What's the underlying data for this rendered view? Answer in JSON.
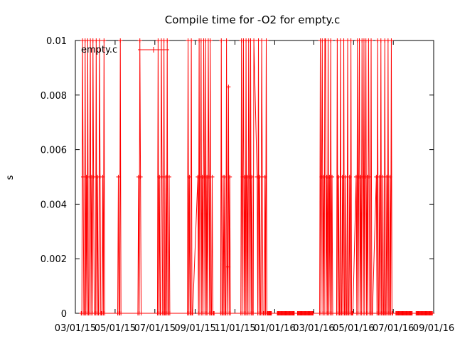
{
  "chart_data": {
    "type": "line",
    "title": "Compile time for -O2 for empty.c",
    "xlabel": "",
    "ylabel": "s",
    "x_scale": "time",
    "xlim": [
      "2015-03-01",
      "2016-09-01"
    ],
    "ylim": [
      0,
      0.01
    ],
    "x_ticks": [
      "03/01/15",
      "05/01/15",
      "07/01/15",
      "09/01/15",
      "11/01/15",
      "01/01/16",
      "03/01/16",
      "05/01/16",
      "07/01/16",
      "09/01/16"
    ],
    "y_ticks": [
      "0",
      "0.002",
      "0.004",
      "0.006",
      "0.008",
      "0.01"
    ],
    "y_tick_values": [
      0,
      0.002,
      0.004,
      0.006,
      0.008,
      0.01
    ],
    "grid": false,
    "legend_position": "top-left",
    "series": [
      {
        "name": "empty.c",
        "color": "#ff0000",
        "style": "linespoints",
        "x": [
          "2015-03-10",
          "2015-03-11",
          "2015-03-12",
          "2015-03-13",
          "2015-03-14",
          "2015-03-15",
          "2015-03-16",
          "2015-03-17",
          "2015-03-18",
          "2015-03-19",
          "2015-03-20",
          "2015-03-21",
          "2015-03-22",
          "2015-03-23",
          "2015-03-24",
          "2015-03-25",
          "2015-03-26",
          "2015-03-27",
          "2015-03-28",
          "2015-03-29",
          "2015-03-30",
          "2015-04-01",
          "2015-04-02",
          "2015-04-03",
          "2015-04-04",
          "2015-04-05",
          "2015-04-06",
          "2015-04-07",
          "2015-04-08",
          "2015-04-09",
          "2015-04-10",
          "2015-04-11",
          "2015-04-12",
          "2015-04-13",
          "2015-04-14",
          "2015-04-15",
          "2015-05-05",
          "2015-05-06",
          "2015-05-07",
          "2015-05-08",
          "2015-05-09",
          "2015-05-10",
          "2015-06-05",
          "2015-06-06",
          "2015-06-07",
          "2015-06-08",
          "2015-06-09",
          "2015-06-10",
          "2015-07-05",
          "2015-07-06",
          "2015-07-07",
          "2015-07-08",
          "2015-07-09",
          "2015-07-10",
          "2015-07-11",
          "2015-07-12",
          "2015-07-13",
          "2015-07-14",
          "2015-07-15",
          "2015-07-16",
          "2015-07-17",
          "2015-07-18",
          "2015-07-19",
          "2015-07-20",
          "2015-07-21",
          "2015-07-22",
          "2015-07-23",
          "2015-07-24",
          "2015-08-20",
          "2015-08-21",
          "2015-08-22",
          "2015-08-23",
          "2015-08-24",
          "2015-08-25",
          "2015-08-26",
          "2015-08-27",
          "2015-08-28",
          "2015-09-05",
          "2015-09-06",
          "2015-09-07",
          "2015-09-08",
          "2015-09-09",
          "2015-09-10",
          "2015-09-11",
          "2015-09-12",
          "2015-09-13",
          "2015-09-14",
          "2015-09-15",
          "2015-09-16",
          "2015-09-17",
          "2015-09-18",
          "2015-09-19",
          "2015-09-20",
          "2015-09-21",
          "2015-09-22",
          "2015-09-23",
          "2015-09-24",
          "2015-09-25",
          "2015-09-26",
          "2015-09-27",
          "2015-09-28",
          "2015-09-29",
          "2015-09-30",
          "2015-10-10",
          "2015-10-11",
          "2015-10-12",
          "2015-10-13",
          "2015-10-14",
          "2015-10-15",
          "2015-10-16",
          "2015-10-17",
          "2015-10-18",
          "2015-10-19",
          "2015-10-20",
          "2015-10-21",
          "2015-10-22",
          "2015-10-23",
          "2015-10-24",
          "2015-10-25",
          "2015-11-10",
          "2015-11-11",
          "2015-11-12",
          "2015-11-13",
          "2015-11-14",
          "2015-11-15",
          "2015-11-16",
          "2015-11-17",
          "2015-11-18",
          "2015-11-19",
          "2015-11-20",
          "2015-11-21",
          "2015-11-22",
          "2015-11-23",
          "2015-11-24",
          "2015-11-25",
          "2015-11-26",
          "2015-11-27",
          "2015-11-28",
          "2015-11-29",
          "2015-11-30",
          "2015-12-05",
          "2015-12-06",
          "2015-12-07",
          "2015-12-08",
          "2015-12-09",
          "2015-12-10",
          "2015-12-11",
          "2015-12-12",
          "2015-12-13",
          "2015-12-14",
          "2015-12-15",
          "2015-12-16",
          "2015-12-17",
          "2015-12-18",
          "2015-12-19",
          "2015-12-20",
          "2015-12-21",
          "2015-12-22",
          "2015-12-23",
          "2015-12-24",
          "2015-12-25",
          "2015-12-26",
          "2015-12-27",
          "2016-01-05",
          "2016-01-06",
          "2016-01-07",
          "2016-01-08",
          "2016-01-09",
          "2016-01-10",
          "2016-01-11",
          "2016-01-12",
          "2016-01-13",
          "2016-01-14",
          "2016-01-15",
          "2016-01-16",
          "2016-01-17",
          "2016-01-18",
          "2016-01-19",
          "2016-01-20",
          "2016-01-21",
          "2016-01-22",
          "2016-01-23",
          "2016-01-24",
          "2016-01-25",
          "2016-01-26",
          "2016-01-27",
          "2016-01-28",
          "2016-01-29",
          "2016-01-30",
          "2016-01-31",
          "2016-02-05",
          "2016-02-06",
          "2016-02-07",
          "2016-02-08",
          "2016-02-09",
          "2016-02-10",
          "2016-02-11",
          "2016-02-12",
          "2016-02-13",
          "2016-02-14",
          "2016-02-15",
          "2016-02-16",
          "2016-02-17",
          "2016-02-18",
          "2016-02-19",
          "2016-02-20",
          "2016-02-21",
          "2016-02-22",
          "2016-02-23",
          "2016-02-24",
          "2016-02-25",
          "2016-02-26",
          "2016-02-27",
          "2016-02-28",
          "2016-02-29",
          "2016-03-10",
          "2016-03-11",
          "2016-03-12",
          "2016-03-13",
          "2016-03-14",
          "2016-03-15",
          "2016-03-16",
          "2016-03-17",
          "2016-03-18",
          "2016-03-19",
          "2016-03-20",
          "2016-03-21",
          "2016-03-22",
          "2016-03-23",
          "2016-03-24",
          "2016-03-25",
          "2016-03-26",
          "2016-03-27",
          "2016-03-28",
          "2016-03-29",
          "2016-03-30",
          "2016-04-05",
          "2016-04-06",
          "2016-04-07",
          "2016-04-08",
          "2016-04-09",
          "2016-04-10",
          "2016-04-11",
          "2016-04-12",
          "2016-04-13",
          "2016-04-14",
          "2016-04-15",
          "2016-04-16",
          "2016-04-17",
          "2016-04-18",
          "2016-04-19",
          "2016-04-20",
          "2016-04-21",
          "2016-04-22",
          "2016-04-23",
          "2016-04-24",
          "2016-04-25",
          "2016-04-26",
          "2016-04-27",
          "2016-04-28",
          "2016-04-29",
          "2016-04-30",
          "2016-05-05",
          "2016-05-06",
          "2016-05-07",
          "2016-05-08",
          "2016-05-09",
          "2016-05-10",
          "2016-05-11",
          "2016-05-12",
          "2016-05-13",
          "2016-05-14",
          "2016-05-15",
          "2016-05-16",
          "2016-05-17",
          "2016-05-18",
          "2016-05-19",
          "2016-05-20",
          "2016-05-21",
          "2016-05-22",
          "2016-05-23",
          "2016-05-24",
          "2016-05-25",
          "2016-05-26",
          "2016-05-27",
          "2016-05-28",
          "2016-05-29",
          "2016-05-30",
          "2016-06-05",
          "2016-06-06",
          "2016-06-07",
          "2016-06-08",
          "2016-06-09",
          "2016-06-10",
          "2016-06-11",
          "2016-06-12",
          "2016-06-13",
          "2016-06-14",
          "2016-06-15",
          "2016-06-16",
          "2016-06-17",
          "2016-06-18",
          "2016-06-19",
          "2016-06-20",
          "2016-06-21",
          "2016-06-22",
          "2016-06-23",
          "2016-06-24",
          "2016-06-25",
          "2016-06-26",
          "2016-06-27",
          "2016-06-28",
          "2016-06-29",
          "2016-06-30",
          "2016-07-05",
          "2016-07-06",
          "2016-07-07",
          "2016-07-08",
          "2016-07-09",
          "2016-07-10",
          "2016-07-11",
          "2016-07-12",
          "2016-07-13",
          "2016-07-14",
          "2016-07-15",
          "2016-07-16",
          "2016-07-17",
          "2016-07-18",
          "2016-07-19",
          "2016-07-20",
          "2016-07-21",
          "2016-07-22",
          "2016-07-23",
          "2016-07-24",
          "2016-07-25",
          "2016-07-26",
          "2016-07-27",
          "2016-07-28",
          "2016-07-29",
          "2016-07-30",
          "2016-08-05",
          "2016-08-06",
          "2016-08-07",
          "2016-08-08",
          "2016-08-09",
          "2016-08-10",
          "2016-08-11",
          "2016-08-12",
          "2016-08-13",
          "2016-08-14",
          "2016-08-15",
          "2016-08-16",
          "2016-08-17",
          "2016-08-18",
          "2016-08-19",
          "2016-08-20",
          "2016-08-21",
          "2016-08-22",
          "2016-08-23",
          "2016-08-24",
          "2016-08-25",
          "2016-08-26",
          "2016-08-27",
          "2016-08-28",
          "2016-08-29",
          "2016-08-30"
        ],
        "y": [
          0,
          0,
          0.01,
          0.005,
          0,
          0,
          0.01,
          0,
          0.005,
          0,
          0.01,
          0,
          0,
          0.005,
          0.01,
          0,
          0.005,
          0,
          0.01,
          0.005,
          0,
          0,
          0.01,
          0,
          0.005,
          0,
          0,
          0.01,
          0.005,
          0,
          0,
          0,
          0.005,
          0,
          0.01,
          0,
          0,
          0.005,
          0,
          0,
          0.01,
          0,
          0,
          0.005,
          0,
          0.01,
          0.005,
          0,
          0,
          0.01,
          0,
          0.005,
          0,
          0,
          0.01,
          0.005,
          0,
          0,
          0.01,
          0,
          0,
          0.005,
          0,
          0.01,
          0,
          0,
          0.005,
          0,
          0,
          0.01,
          0,
          0.005,
          0,
          0,
          0.01,
          0,
          0,
          0.005,
          0,
          0.01,
          0,
          0.005,
          0.01,
          0,
          0.005,
          0,
          0.01,
          0.005,
          0,
          0.01,
          0,
          0.005,
          0,
          0.01,
          0.005,
          0,
          0.01,
          0,
          0,
          0.005,
          0,
          0,
          0,
          0,
          0.01,
          0,
          0,
          0.005,
          0,
          0.005,
          0,
          0,
          0.01,
          0,
          0.0017,
          0.0083,
          0,
          0.005,
          0,
          0,
          0.01,
          0,
          0.005,
          0.01,
          0,
          0.005,
          0,
          0.01,
          0,
          0.005,
          0,
          0.01,
          0.005,
          0,
          0.01,
          0,
          0.005,
          0,
          0,
          0.01,
          0.005,
          0,
          0.01,
          0,
          0.005,
          0,
          0,
          0.01,
          0.005,
          0,
          0,
          0,
          0.005,
          0,
          0.01,
          0,
          0,
          0,
          0,
          0,
          0,
          0,
          0,
          0,
          0,
          0,
          0,
          0,
          0,
          0,
          0,
          0,
          0,
          0,
          0,
          0,
          0,
          0,
          0,
          0,
          0,
          0,
          0,
          0,
          0,
          0,
          0,
          0,
          0,
          0,
          0,
          0,
          0,
          0,
          0,
          0,
          0,
          0,
          0,
          0,
          0,
          0,
          0,
          0,
          0,
          0,
          0,
          0,
          0,
          0,
          0,
          0,
          0,
          0,
          0,
          0,
          0.01,
          0,
          0.005,
          0.01,
          0,
          0.005,
          0,
          0.01,
          0.01,
          0,
          0.005,
          0,
          0.01,
          0,
          0.005,
          0,
          0.01,
          0,
          0.005,
          0,
          0,
          0.01,
          0,
          0.005,
          0,
          0,
          0.01,
          0,
          0,
          0.005,
          0,
          0.01,
          0,
          0,
          0.005,
          0,
          0,
          0.01,
          0,
          0,
          0.005,
          0,
          0.01,
          0,
          0,
          0,
          0.005,
          0,
          0.01,
          0,
          0.005,
          0.01,
          0,
          0.005,
          0,
          0.01,
          0.005,
          0,
          0.01,
          0,
          0.005,
          0.01,
          0,
          0.005,
          0,
          0.01,
          0.005,
          0,
          0,
          0.01,
          0,
          0,
          0.005,
          0,
          0.01,
          0,
          0,
          0.005,
          0,
          0.01,
          0,
          0,
          0.005,
          0,
          0,
          0.01,
          0,
          0,
          0.005,
          0,
          0.01,
          0,
          0,
          0.005,
          0,
          0.01,
          0,
          0,
          0,
          0,
          0,
          0,
          0,
          0,
          0,
          0,
          0,
          0,
          0,
          0,
          0,
          0,
          0,
          0,
          0,
          0,
          0,
          0,
          0,
          0,
          0,
          0,
          0,
          0,
          0,
          0,
          0,
          0,
          0,
          0,
          0,
          0,
          0,
          0,
          0,
          0,
          0,
          0,
          0,
          0,
          0,
          0,
          0,
          0,
          0,
          0,
          0,
          0,
          0,
          0
        ]
      }
    ]
  }
}
